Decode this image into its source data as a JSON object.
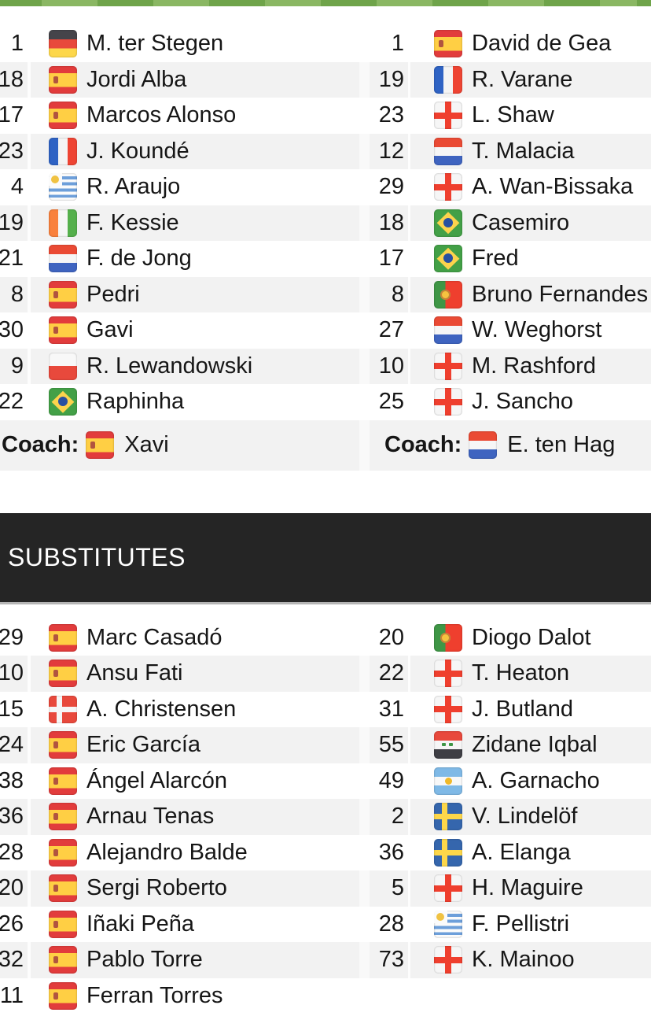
{
  "theme": {
    "pitch_dark": "#6fa44a",
    "pitch_light": "#8ab763",
    "stripe": "#f2f2f2",
    "header_bg": "#252525",
    "header_text": "#ffffff"
  },
  "flag_countries": {
    "de": "germany",
    "es": "spain",
    "fr": "france",
    "uy": "uruguay",
    "ci": "ivory-coast",
    "nl": "netherlands",
    "pl": "poland",
    "br": "brazil",
    "en": "england",
    "pt": "portugal",
    "dk": "denmark",
    "iq": "iraq",
    "ar": "argentina",
    "se": "sweden"
  },
  "starting_xi": {
    "left": {
      "players": [
        {
          "num": "1",
          "name": "M. ter Stegen",
          "flag": "de"
        },
        {
          "num": "18",
          "name": "Jordi Alba",
          "flag": "es"
        },
        {
          "num": "17",
          "name": "Marcos Alonso",
          "flag": "es"
        },
        {
          "num": "23",
          "name": "J. Koundé",
          "flag": "fr"
        },
        {
          "num": "4",
          "name": "R. Araujo",
          "flag": "uy"
        },
        {
          "num": "19",
          "name": "F. Kessie",
          "flag": "ci"
        },
        {
          "num": "21",
          "name": "F. de Jong",
          "flag": "nl"
        },
        {
          "num": "8",
          "name": "Pedri",
          "flag": "es"
        },
        {
          "num": "30",
          "name": "Gavi",
          "flag": "es"
        },
        {
          "num": "9",
          "name": "R. Lewandowski",
          "flag": "pl"
        },
        {
          "num": "22",
          "name": "Raphinha",
          "flag": "br"
        }
      ],
      "coach": {
        "label": "Coach:",
        "name": "Xavi",
        "flag": "es"
      }
    },
    "right": {
      "players": [
        {
          "num": "1",
          "name": "David de Gea",
          "flag": "es"
        },
        {
          "num": "19",
          "name": "R. Varane",
          "flag": "fr"
        },
        {
          "num": "23",
          "name": "L. Shaw",
          "flag": "en"
        },
        {
          "num": "12",
          "name": "T. Malacia",
          "flag": "nl"
        },
        {
          "num": "29",
          "name": "A. Wan-Bissaka",
          "flag": "en"
        },
        {
          "num": "18",
          "name": "Casemiro",
          "flag": "br"
        },
        {
          "num": "17",
          "name": "Fred",
          "flag": "br"
        },
        {
          "num": "8",
          "name": "Bruno Fernandes",
          "flag": "pt"
        },
        {
          "num": "27",
          "name": "W. Weghorst",
          "flag": "nl"
        },
        {
          "num": "10",
          "name": "M. Rashford",
          "flag": "en"
        },
        {
          "num": "25",
          "name": "J. Sancho",
          "flag": "en"
        }
      ],
      "coach": {
        "label": "Coach:",
        "name": "E. ten Hag",
        "flag": "nl"
      }
    }
  },
  "substitutes": {
    "header": "SUBSTITUTES",
    "left": [
      {
        "num": "29",
        "name": "Marc Casadó",
        "flag": "es"
      },
      {
        "num": "10",
        "name": "Ansu Fati",
        "flag": "es"
      },
      {
        "num": "15",
        "name": "A. Christensen",
        "flag": "dk"
      },
      {
        "num": "24",
        "name": "Eric García",
        "flag": "es"
      },
      {
        "num": "38",
        "name": "Ángel Alarcón",
        "flag": "es"
      },
      {
        "num": "36",
        "name": "Arnau Tenas",
        "flag": "es"
      },
      {
        "num": "28",
        "name": "Alejandro Balde",
        "flag": "es"
      },
      {
        "num": "20",
        "name": "Sergi Roberto",
        "flag": "es"
      },
      {
        "num": "26",
        "name": "Iñaki Peña",
        "flag": "es"
      },
      {
        "num": "32",
        "name": "Pablo Torre",
        "flag": "es"
      },
      {
        "num": "11",
        "name": "Ferran Torres",
        "flag": "es"
      }
    ],
    "right": [
      {
        "num": "20",
        "name": "Diogo Dalot",
        "flag": "pt"
      },
      {
        "num": "22",
        "name": "T. Heaton",
        "flag": "en"
      },
      {
        "num": "31",
        "name": "J. Butland",
        "flag": "en"
      },
      {
        "num": "55",
        "name": "Zidane Iqbal",
        "flag": "iq"
      },
      {
        "num": "49",
        "name": "A. Garnacho",
        "flag": "ar"
      },
      {
        "num": "2",
        "name": "V. Lindelöf",
        "flag": "se"
      },
      {
        "num": "36",
        "name": "A. Elanga",
        "flag": "se"
      },
      {
        "num": "5",
        "name": "H. Maguire",
        "flag": "en"
      },
      {
        "num": "28",
        "name": "F. Pellistri",
        "flag": "uy"
      },
      {
        "num": "73",
        "name": "K. Mainoo",
        "flag": "en"
      }
    ]
  }
}
